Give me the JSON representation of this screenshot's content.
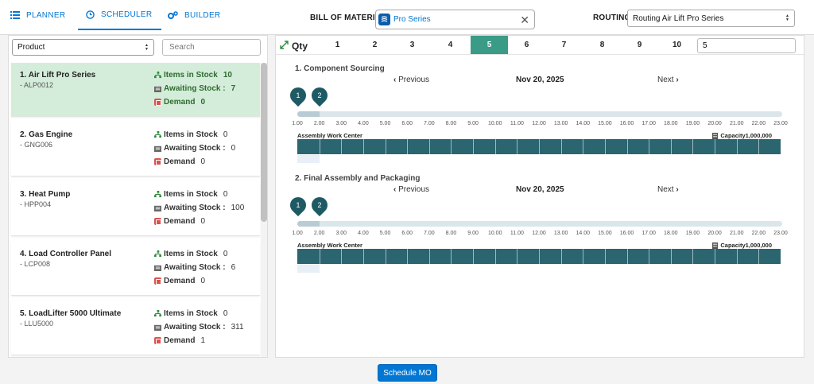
{
  "tabs": [
    {
      "label": "PLANNER",
      "active": false
    },
    {
      "label": "SCHEDULER",
      "active": true
    },
    {
      "label": "BUILDER",
      "active": false
    }
  ],
  "bom": {
    "label": "BILL OF MATERIAL",
    "value": "Pro Series"
  },
  "routing": {
    "label": "ROUTING",
    "value": "Routing Air Lift Pro Series"
  },
  "filters": {
    "product_value": "Product",
    "search_placeholder": "Search"
  },
  "stat_labels": {
    "stock": "Items in Stock",
    "awaiting": "Awaiting Stock :",
    "demand": "Demand"
  },
  "products": [
    {
      "name": "1.  Air Lift Pro Series",
      "code": "- ALP0012",
      "stock": "10",
      "awaiting": "7",
      "demand": "0",
      "active": true
    },
    {
      "name": "2.  Gas Engine",
      "code": "- GNG006",
      "stock": "0",
      "awaiting": "0",
      "demand": "0",
      "active": false
    },
    {
      "name": "3.  Heat Pump",
      "code": "- HPP004",
      "stock": "0",
      "awaiting": "100",
      "demand": "0",
      "active": false
    },
    {
      "name": "4.  Load Controller Panel",
      "code": "- LCP008",
      "stock": "0",
      "awaiting": "6",
      "demand": "0",
      "active": false
    },
    {
      "name": "5.  LoadLifter 5000 Ultimate",
      "code": "- LLU5000",
      "stock": "0",
      "awaiting": "311",
      "demand": "1",
      "active": false
    }
  ],
  "qty": {
    "label": "Qty",
    "options": [
      "1",
      "2",
      "3",
      "4",
      "5",
      "6",
      "7",
      "8",
      "9",
      "10"
    ],
    "selected": "5",
    "input_value": "5"
  },
  "timeline_ticks": [
    "1.00",
    "2.00",
    "3.00",
    "4.00",
    "5.00",
    "6.00",
    "7.00",
    "8.00",
    "9.00",
    "10.00",
    "11.00",
    "12.00",
    "13.00",
    "14.00",
    "15.00",
    "16.00",
    "17.00",
    "18.00",
    "19.00",
    "20.00",
    "21.00",
    "22.00",
    "23.00"
  ],
  "sections": [
    {
      "title": "1.   Component Sourcing",
      "prev": "Previous",
      "date": "Nov 20, 2025",
      "next": "Next",
      "pins": [
        "1",
        "2"
      ],
      "work_center": "Assembly Work Center",
      "capacity": "Capacity1,000,000"
    },
    {
      "title": "2.   Final Assembly and Packaging",
      "prev": "Previous",
      "date": "Nov 20, 2025",
      "next": "Next",
      "pins": [
        "1",
        "2"
      ],
      "work_center": "Assembly Work Center",
      "capacity": "Capacity1,000,000"
    }
  ],
  "footer": {
    "schedule_label": "Schedule MO"
  },
  "colors": {
    "accent": "#0176d3",
    "qty_active": "#3a9b86",
    "gantt": "#2b6570",
    "active_card": "#d4edda"
  }
}
